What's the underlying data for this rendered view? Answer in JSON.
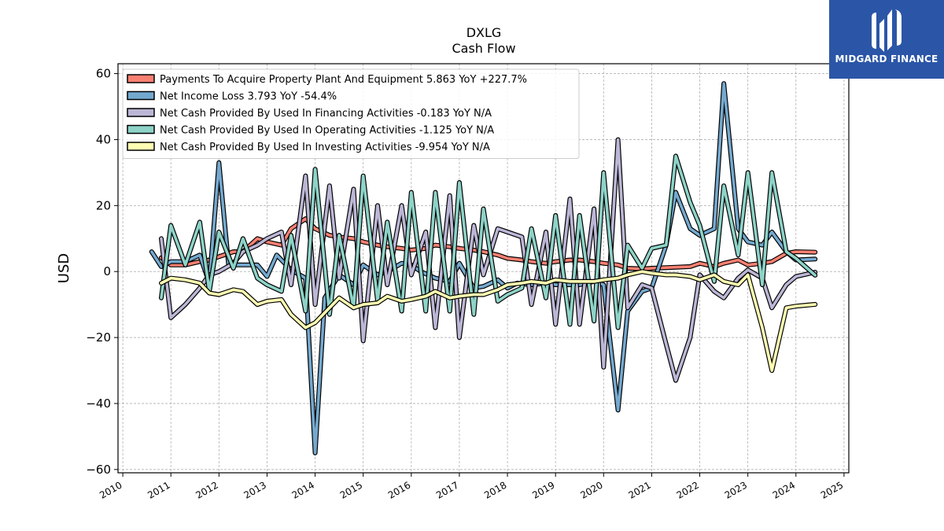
{
  "logo": {
    "text": "MIDGARD FINANCE"
  },
  "chart_data": {
    "type": "line",
    "title": "DXLG",
    "subtitle": "Cash Flow",
    "ylabel": "USD",
    "xlabel": "",
    "ylim": [
      -61,
      63
    ],
    "xlim": [
      2009.9,
      2025.1
    ],
    "yticks": [
      60,
      40,
      20,
      0,
      -20,
      -40,
      -60
    ],
    "ytick_labels": [
      "60",
      "40",
      "20",
      "0",
      "−20",
      "−40",
      "−60"
    ],
    "xticks": [
      2010,
      2011,
      2012,
      2013,
      2014,
      2015,
      2016,
      2017,
      2018,
      2019,
      2020,
      2021,
      2022,
      2023,
      2024,
      2025
    ],
    "xtick_labels": [
      "2010",
      "2011",
      "2012",
      "2013",
      "2014",
      "2015",
      "2016",
      "2017",
      "2018",
      "2019",
      "2020",
      "2021",
      "2022",
      "2023",
      "2024",
      "2025"
    ],
    "grid": true,
    "legend_position": "top-left",
    "series": [
      {
        "name": "Payments To Acquire Property Plant And Equipment  5.863 YoY +227.7%",
        "color": "#fa8072",
        "points": [
          [
            2010.8,
            4.2
          ],
          [
            2011.0,
            2.0
          ],
          [
            2011.3,
            2.0
          ],
          [
            2011.6,
            3.0
          ],
          [
            2011.8,
            3.5
          ],
          [
            2012.0,
            4.5
          ],
          [
            2012.3,
            6.0
          ],
          [
            2012.5,
            6.0
          ],
          [
            2012.8,
            10.0
          ],
          [
            2013.0,
            9.0
          ],
          [
            2013.3,
            8.0
          ],
          [
            2013.5,
            13.0
          ],
          [
            2013.8,
            16.0
          ],
          [
            2014.0,
            13.0
          ],
          [
            2014.3,
            11.0
          ],
          [
            2014.5,
            10.5
          ],
          [
            2014.8,
            10.0
          ],
          [
            2015.0,
            9.0
          ],
          [
            2015.3,
            8.0
          ],
          [
            2015.5,
            7.5
          ],
          [
            2015.8,
            7.0
          ],
          [
            2016.0,
            6.5
          ],
          [
            2016.3,
            7.0
          ],
          [
            2016.5,
            8.0
          ],
          [
            2016.8,
            7.5
          ],
          [
            2017.0,
            7.0
          ],
          [
            2017.3,
            6.5
          ],
          [
            2017.5,
            6.0
          ],
          [
            2017.8,
            5.0
          ],
          [
            2018.0,
            4.0
          ],
          [
            2018.3,
            3.5
          ],
          [
            2018.5,
            3.0
          ],
          [
            2018.8,
            2.5
          ],
          [
            2019.0,
            3.0
          ],
          [
            2019.3,
            3.5
          ],
          [
            2019.5,
            3.5
          ],
          [
            2019.8,
            3.0
          ],
          [
            2020.0,
            2.5
          ],
          [
            2020.3,
            2.0
          ],
          [
            2020.5,
            1.0
          ],
          [
            2020.8,
            0.8
          ],
          [
            2021.0,
            1.0
          ],
          [
            2021.3,
            1.2
          ],
          [
            2021.5,
            1.3
          ],
          [
            2021.8,
            1.5
          ],
          [
            2022.0,
            2.5
          ],
          [
            2022.3,
            1.5
          ],
          [
            2022.5,
            2.5
          ],
          [
            2022.8,
            3.5
          ],
          [
            2023.0,
            2.0
          ],
          [
            2023.3,
            2.5
          ],
          [
            2023.5,
            3.0
          ],
          [
            2023.8,
            5.5
          ],
          [
            2024.0,
            6.0
          ],
          [
            2024.4,
            5.863
          ]
        ]
      },
      {
        "name": "Net Income Loss  3.793 YoY -54.4%",
        "color": "#74a9cf",
        "points": [
          [
            2010.6,
            6.0
          ],
          [
            2010.8,
            1.5
          ],
          [
            2011.0,
            3.0
          ],
          [
            2011.3,
            3.0
          ],
          [
            2011.6,
            5.0
          ],
          [
            2011.8,
            -3.5
          ],
          [
            2012.0,
            33.0
          ],
          [
            2012.2,
            2.0
          ],
          [
            2012.5,
            2.0
          ],
          [
            2012.8,
            2.0
          ],
          [
            2013.0,
            -1.5
          ],
          [
            2013.2,
            5.0
          ],
          [
            2013.5,
            0.5
          ],
          [
            2013.8,
            -2.0
          ],
          [
            2014.0,
            -55.0
          ],
          [
            2014.2,
            -8.0
          ],
          [
            2014.5,
            -1.0
          ],
          [
            2014.8,
            -4.0
          ],
          [
            2015.0,
            2.0
          ],
          [
            2015.3,
            -1.0
          ],
          [
            2015.5,
            0.0
          ],
          [
            2015.8,
            2.5
          ],
          [
            2016.0,
            2.0
          ],
          [
            2016.2,
            0.0
          ],
          [
            2016.5,
            -2.0
          ],
          [
            2016.8,
            -3.0
          ],
          [
            2017.0,
            2.5
          ],
          [
            2017.3,
            -5.0
          ],
          [
            2017.5,
            -4.5
          ],
          [
            2017.8,
            -2.5
          ],
          [
            2018.0,
            -5.0
          ],
          [
            2018.2,
            -3.5
          ],
          [
            2018.5,
            -4.0
          ],
          [
            2018.8,
            -3.5
          ],
          [
            2019.0,
            -4.0
          ],
          [
            2019.3,
            -4.0
          ],
          [
            2019.5,
            -4.0
          ],
          [
            2019.8,
            -3.0
          ],
          [
            2020.0,
            -4.0
          ],
          [
            2020.3,
            -42.0
          ],
          [
            2020.5,
            -12.0
          ],
          [
            2020.8,
            -6.0
          ],
          [
            2021.0,
            -5.0
          ],
          [
            2021.3,
            8.0
          ],
          [
            2021.5,
            24.0
          ],
          [
            2021.8,
            13.0
          ],
          [
            2022.0,
            11.0
          ],
          [
            2022.3,
            13.0
          ],
          [
            2022.5,
            57.0
          ],
          [
            2022.8,
            13.0
          ],
          [
            2023.0,
            9.0
          ],
          [
            2023.3,
            8.0
          ],
          [
            2023.5,
            12.0
          ],
          [
            2023.8,
            6.0
          ],
          [
            2024.0,
            3.5
          ],
          [
            2024.4,
            3.793
          ]
        ]
      },
      {
        "name": "Net Cash Provided By Used In Financing Activities  -0.183 YoY N/A",
        "color": "#bcb6d6",
        "points": [
          [
            2010.8,
            10.0
          ],
          [
            2011.0,
            -14.0
          ],
          [
            2011.3,
            -10.0
          ],
          [
            2011.6,
            -5.0
          ],
          [
            2011.8,
            -1.0
          ],
          [
            2012.0,
            0.0
          ],
          [
            2012.3,
            2.5
          ],
          [
            2012.5,
            6.0
          ],
          [
            2012.8,
            8.0
          ],
          [
            2013.0,
            10.0
          ],
          [
            2013.3,
            12.0
          ],
          [
            2013.5,
            -4.0
          ],
          [
            2013.8,
            29.0
          ],
          [
            2014.0,
            -10.0
          ],
          [
            2014.3,
            26.0
          ],
          [
            2014.5,
            -2.0
          ],
          [
            2014.8,
            25.0
          ],
          [
            2015.0,
            -21.0
          ],
          [
            2015.3,
            20.0
          ],
          [
            2015.5,
            -4.0
          ],
          [
            2015.8,
            20.0
          ],
          [
            2016.0,
            -1.0
          ],
          [
            2016.3,
            12.0
          ],
          [
            2016.5,
            -17.0
          ],
          [
            2016.8,
            23.0
          ],
          [
            2017.0,
            -20.0
          ],
          [
            2017.3,
            14.0
          ],
          [
            2017.5,
            -1.0
          ],
          [
            2017.8,
            13.0
          ],
          [
            2018.0,
            12.0
          ],
          [
            2018.3,
            10.5
          ],
          [
            2018.5,
            -10.0
          ],
          [
            2018.8,
            12.0
          ],
          [
            2019.0,
            -16.0
          ],
          [
            2019.3,
            22.0
          ],
          [
            2019.5,
            -16.0
          ],
          [
            2019.8,
            19.0
          ],
          [
            2020.0,
            -29.0
          ],
          [
            2020.3,
            40.0
          ],
          [
            2020.5,
            -11.0
          ],
          [
            2020.8,
            -4.0
          ],
          [
            2021.0,
            -5.0
          ],
          [
            2021.3,
            -22.0
          ],
          [
            2021.5,
            -33.0
          ],
          [
            2021.8,
            -20.0
          ],
          [
            2022.0,
            -1.0
          ],
          [
            2022.3,
            -6.0
          ],
          [
            2022.5,
            -8.0
          ],
          [
            2022.8,
            -2.0
          ],
          [
            2023.0,
            0.5
          ],
          [
            2023.3,
            -2.0
          ],
          [
            2023.5,
            -11.0
          ],
          [
            2023.8,
            -4.0
          ],
          [
            2024.0,
            -1.5
          ],
          [
            2024.4,
            -0.183
          ]
        ]
      },
      {
        "name": "Net Cash Provided By Used In Operating Activities  -1.125 YoY N/A",
        "color": "#8dd3c7",
        "points": [
          [
            2010.8,
            -8.0
          ],
          [
            2011.0,
            14.0
          ],
          [
            2011.3,
            2.0
          ],
          [
            2011.6,
            15.0
          ],
          [
            2011.8,
            -6.0
          ],
          [
            2012.0,
            12.0
          ],
          [
            2012.3,
            1.0
          ],
          [
            2012.5,
            10.0
          ],
          [
            2012.8,
            -2.0
          ],
          [
            2013.0,
            -4.0
          ],
          [
            2013.3,
            -6.0
          ],
          [
            2013.5,
            11.0
          ],
          [
            2013.8,
            -12.0
          ],
          [
            2014.0,
            31.0
          ],
          [
            2014.3,
            -13.0
          ],
          [
            2014.5,
            11.0
          ],
          [
            2014.8,
            -11.0
          ],
          [
            2015.0,
            29.0
          ],
          [
            2015.3,
            -9.0
          ],
          [
            2015.5,
            15.0
          ],
          [
            2015.8,
            -12.0
          ],
          [
            2016.0,
            24.0
          ],
          [
            2016.3,
            -12.0
          ],
          [
            2016.5,
            24.0
          ],
          [
            2016.8,
            -12.0
          ],
          [
            2017.0,
            27.0
          ],
          [
            2017.3,
            -13.0
          ],
          [
            2017.5,
            19.0
          ],
          [
            2017.8,
            -9.0
          ],
          [
            2018.0,
            -7.0
          ],
          [
            2018.3,
            -5.0
          ],
          [
            2018.5,
            13.0
          ],
          [
            2018.8,
            -8.0
          ],
          [
            2019.0,
            17.0
          ],
          [
            2019.3,
            -16.0
          ],
          [
            2019.5,
            17.0
          ],
          [
            2019.8,
            -15.0
          ],
          [
            2020.0,
            30.0
          ],
          [
            2020.3,
            -17.0
          ],
          [
            2020.5,
            8.0
          ],
          [
            2020.8,
            1.0
          ],
          [
            2021.0,
            7.0
          ],
          [
            2021.3,
            8.0
          ],
          [
            2021.5,
            35.0
          ],
          [
            2021.8,
            21.0
          ],
          [
            2022.0,
            14.0
          ],
          [
            2022.3,
            -3.0
          ],
          [
            2022.5,
            26.0
          ],
          [
            2022.8,
            5.0
          ],
          [
            2023.0,
            30.0
          ],
          [
            2023.3,
            -4.0
          ],
          [
            2023.5,
            30.0
          ],
          [
            2023.8,
            6.0
          ],
          [
            2024.0,
            4.0
          ],
          [
            2024.4,
            -1.125
          ]
        ]
      },
      {
        "name": "Net Cash Provided By Used In Investing Activities  -9.954 YoY N/A",
        "color": "#ffffb3",
        "points": [
          [
            2010.8,
            -3.5
          ],
          [
            2011.0,
            -2.0
          ],
          [
            2011.3,
            -2.5
          ],
          [
            2011.6,
            -3.5
          ],
          [
            2011.8,
            -6.5
          ],
          [
            2012.0,
            -7.0
          ],
          [
            2012.3,
            -5.5
          ],
          [
            2012.5,
            -6.0
          ],
          [
            2012.8,
            -10.0
          ],
          [
            2013.0,
            -9.0
          ],
          [
            2013.3,
            -8.5
          ],
          [
            2013.5,
            -13.0
          ],
          [
            2013.8,
            -17.0
          ],
          [
            2014.0,
            -15.5
          ],
          [
            2014.3,
            -11.0
          ],
          [
            2014.5,
            -8.0
          ],
          [
            2014.8,
            -11.0
          ],
          [
            2015.0,
            -10.0
          ],
          [
            2015.3,
            -9.5
          ],
          [
            2015.5,
            -7.5
          ],
          [
            2015.8,
            -9.0
          ],
          [
            2016.0,
            -8.5
          ],
          [
            2016.3,
            -7.5
          ],
          [
            2016.5,
            -6.0
          ],
          [
            2016.8,
            -8.0
          ],
          [
            2017.0,
            -7.5
          ],
          [
            2017.3,
            -7.0
          ],
          [
            2017.5,
            -7.0
          ],
          [
            2017.8,
            -5.5
          ],
          [
            2018.0,
            -4.0
          ],
          [
            2018.3,
            -3.5
          ],
          [
            2018.5,
            -3.0
          ],
          [
            2018.8,
            -3.5
          ],
          [
            2019.0,
            -2.5
          ],
          [
            2019.3,
            -3.0
          ],
          [
            2019.5,
            -3.0
          ],
          [
            2019.8,
            -3.0
          ],
          [
            2020.0,
            -2.5
          ],
          [
            2020.3,
            -2.0
          ],
          [
            2020.5,
            -1.0
          ],
          [
            2020.8,
            0.0
          ],
          [
            2021.0,
            -0.5
          ],
          [
            2021.3,
            -1.0
          ],
          [
            2021.5,
            -1.0
          ],
          [
            2021.8,
            -1.5
          ],
          [
            2022.0,
            -2.5
          ],
          [
            2022.3,
            -1.0
          ],
          [
            2022.5,
            -3.0
          ],
          [
            2022.8,
            -4.0
          ],
          [
            2023.0,
            -1.0
          ],
          [
            2023.3,
            -17.0
          ],
          [
            2023.5,
            -30.0
          ],
          [
            2023.8,
            -11.0
          ],
          [
            2024.0,
            -10.5
          ],
          [
            2024.4,
            -9.954
          ]
        ]
      }
    ]
  }
}
